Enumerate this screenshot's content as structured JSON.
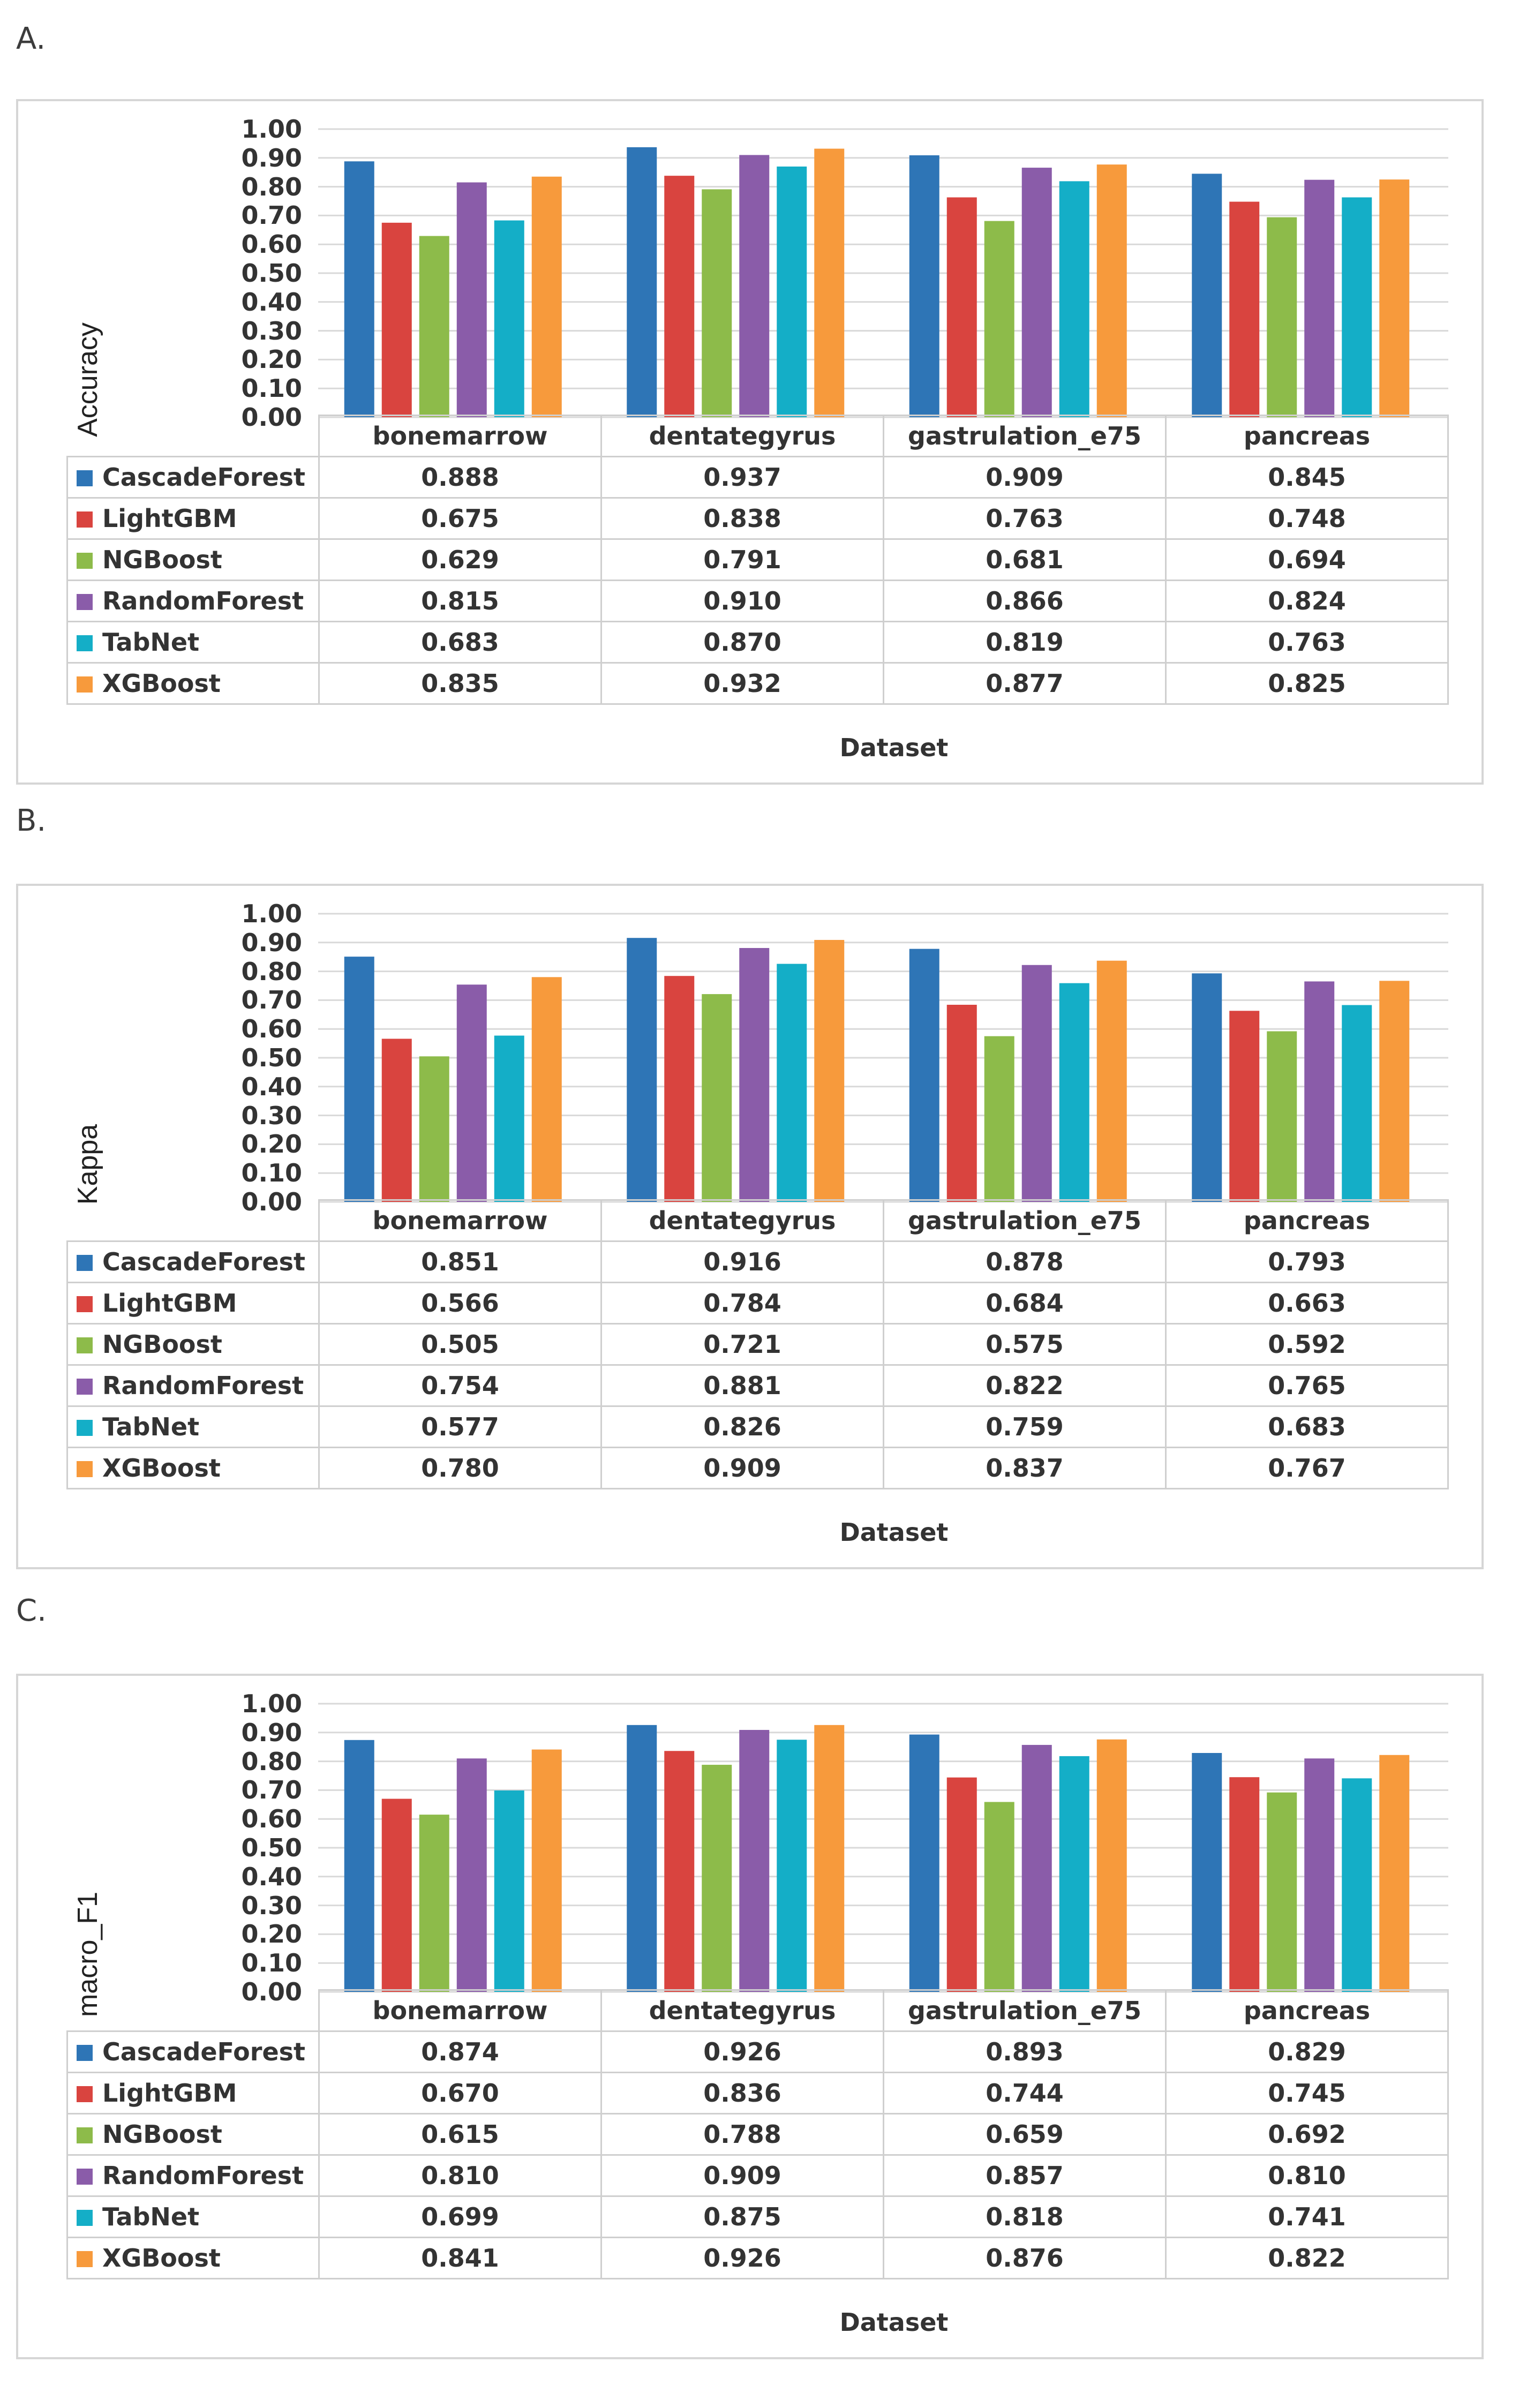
{
  "chart_data": [
    {
      "type": "bar",
      "panel": "A.",
      "ylabel": "Accuracy",
      "xlabel": "Dataset",
      "ylim": [
        0,
        1
      ],
      "yticks": [
        "1.00",
        "0.90",
        "0.80",
        "0.70",
        "0.60",
        "0.50",
        "0.40",
        "0.30",
        "0.20",
        "0.10",
        "0.00"
      ],
      "categories": [
        "bonemarrow",
        "dentategyrus",
        "gastrulation_e75",
        "pancreas"
      ],
      "series": [
        {
          "name": "CascadeForest",
          "color": "#2e75b6",
          "values": [
            0.888,
            0.937,
            0.909,
            0.845
          ],
          "labels": [
            "0.888",
            "0.937",
            "0.909",
            "0.845"
          ]
        },
        {
          "name": "LightGBM",
          "color": "#d9443f",
          "values": [
            0.675,
            0.838,
            0.763,
            0.748
          ],
          "labels": [
            "0.675",
            "0.838",
            "0.763",
            "0.748"
          ]
        },
        {
          "name": "NGBoost",
          "color": "#8dbb4a",
          "values": [
            0.629,
            0.791,
            0.681,
            0.694
          ],
          "labels": [
            "0.629",
            "0.791",
            "0.681",
            "0.694"
          ]
        },
        {
          "name": "RandomForest",
          "color": "#8a5ca9",
          "values": [
            0.815,
            0.91,
            0.866,
            0.824
          ],
          "labels": [
            "0.815",
            "0.910",
            "0.866",
            "0.824"
          ]
        },
        {
          "name": "TabNet",
          "color": "#14aec7",
          "values": [
            0.683,
            0.87,
            0.819,
            0.763
          ],
          "labels": [
            "0.683",
            "0.870",
            "0.819",
            "0.763"
          ]
        },
        {
          "name": "XGBoost",
          "color": "#f79a3c",
          "values": [
            0.835,
            0.932,
            0.877,
            0.825
          ],
          "labels": [
            "0.835",
            "0.932",
            "0.877",
            "0.825"
          ]
        }
      ],
      "grid": true
    },
    {
      "type": "bar",
      "panel": "B.",
      "ylabel": "Kappa",
      "xlabel": "Dataset",
      "ylim": [
        0,
        1
      ],
      "yticks": [
        "1.00",
        "0.90",
        "0.80",
        "0.70",
        "0.60",
        "0.50",
        "0.40",
        "0.30",
        "0.20",
        "0.10",
        "0.00"
      ],
      "categories": [
        "bonemarrow",
        "dentategyrus",
        "gastrulation_e75",
        "pancreas"
      ],
      "series": [
        {
          "name": "CascadeForest",
          "color": "#2e75b6",
          "values": [
            0.851,
            0.916,
            0.878,
            0.793
          ],
          "labels": [
            "0.851",
            "0.916",
            "0.878",
            "0.793"
          ]
        },
        {
          "name": "LightGBM",
          "color": "#d9443f",
          "values": [
            0.566,
            0.784,
            0.684,
            0.663
          ],
          "labels": [
            "0.566",
            "0.784",
            "0.684",
            "0.663"
          ]
        },
        {
          "name": "NGBoost",
          "color": "#8dbb4a",
          "values": [
            0.505,
            0.721,
            0.575,
            0.592
          ],
          "labels": [
            "0.505",
            "0.721",
            "0.575",
            "0.592"
          ]
        },
        {
          "name": "RandomForest",
          "color": "#8a5ca9",
          "values": [
            0.754,
            0.881,
            0.822,
            0.765
          ],
          "labels": [
            "0.754",
            "0.881",
            "0.822",
            "0.765"
          ]
        },
        {
          "name": "TabNet",
          "color": "#14aec7",
          "values": [
            0.577,
            0.826,
            0.759,
            0.683
          ],
          "labels": [
            "0.577",
            "0.826",
            "0.759",
            "0.683"
          ]
        },
        {
          "name": "XGBoost",
          "color": "#f79a3c",
          "values": [
            0.78,
            0.909,
            0.837,
            0.767
          ],
          "labels": [
            "0.780",
            "0.909",
            "0.837",
            "0.767"
          ]
        }
      ],
      "grid": true
    },
    {
      "type": "bar",
      "panel": "C.",
      "ylabel": "macro_F1",
      "xlabel": "Dataset",
      "ylim": [
        0,
        1
      ],
      "yticks": [
        "1.00",
        "0.90",
        "0.80",
        "0.70",
        "0.60",
        "0.50",
        "0.40",
        "0.30",
        "0.20",
        "0.10",
        "0.00"
      ],
      "categories": [
        "bonemarrow",
        "dentategyrus",
        "gastrulation_e75",
        "pancreas"
      ],
      "series": [
        {
          "name": "CascadeForest",
          "color": "#2e75b6",
          "values": [
            0.874,
            0.926,
            0.893,
            0.829
          ],
          "labels": [
            "0.874",
            "0.926",
            "0.893",
            "0.829"
          ]
        },
        {
          "name": "LightGBM",
          "color": "#d9443f",
          "values": [
            0.67,
            0.836,
            0.744,
            0.745
          ],
          "labels": [
            "0.670",
            "0.836",
            "0.744",
            "0.745"
          ]
        },
        {
          "name": "NGBoost",
          "color": "#8dbb4a",
          "values": [
            0.615,
            0.788,
            0.659,
            0.692
          ],
          "labels": [
            "0.615",
            "0.788",
            "0.659",
            "0.692"
          ]
        },
        {
          "name": "RandomForest",
          "color": "#8a5ca9",
          "values": [
            0.81,
            0.909,
            0.857,
            0.81
          ],
          "labels": [
            "0.810",
            "0.909",
            "0.857",
            "0.810"
          ]
        },
        {
          "name": "TabNet",
          "color": "#14aec7",
          "values": [
            0.699,
            0.875,
            0.818,
            0.741
          ],
          "labels": [
            "0.699",
            "0.875",
            "0.818",
            "0.741"
          ]
        },
        {
          "name": "XGBoost",
          "color": "#f79a3c",
          "values": [
            0.841,
            0.926,
            0.876,
            0.822
          ],
          "labels": [
            "0.841",
            "0.926",
            "0.876",
            "0.822"
          ]
        }
      ],
      "grid": true
    }
  ]
}
